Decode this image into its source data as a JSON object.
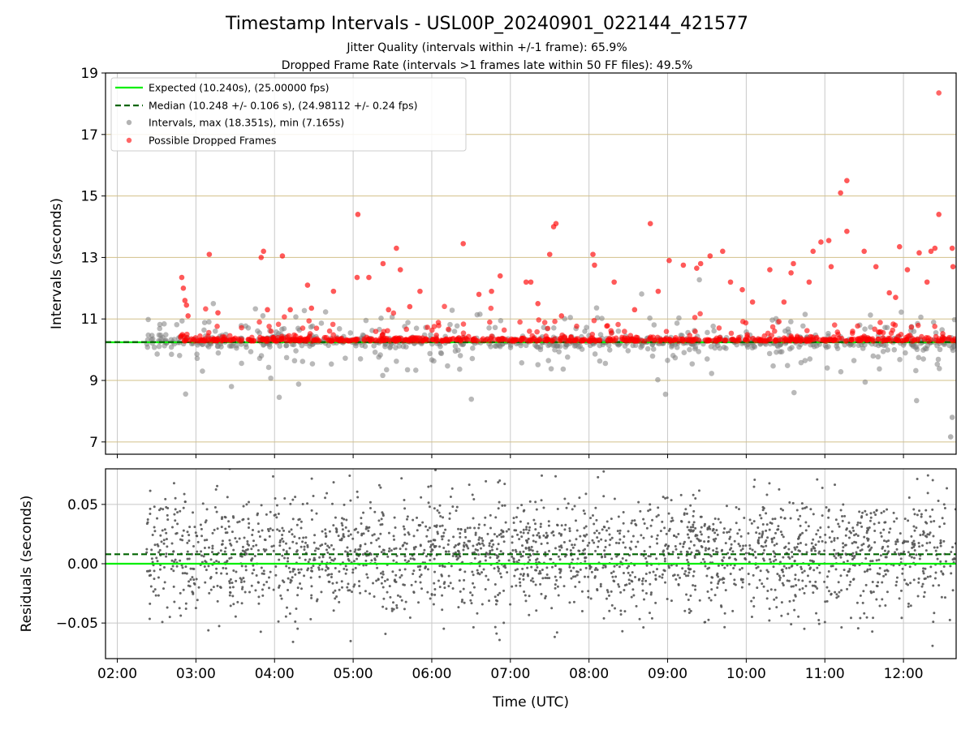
{
  "figure": {
    "title": "Timestamp Intervals - USL00P_20240901_022144_421577",
    "subtitle_1": "Jitter Quality (intervals within +/-1 frame): 65.9%",
    "subtitle_2": "Dropped Frame Rate (intervals >1 frames late within 50 FF files): 49.5%"
  },
  "colors": {
    "expected_line": "#00ee00",
    "median_line": "#006400",
    "intervals": "#808080",
    "dropped": "#ff0000",
    "grid_vertical": "#c8c8c8",
    "grid_horizontal": "#d2c08a",
    "residual_points": "#555555"
  },
  "chart_data": [
    {
      "type": "scatter",
      "panel": "intervals",
      "ylabel": "Intervals (seconds)",
      "xlabel": "",
      "xlim_hours": [
        1.85,
        12.67
      ],
      "ylim": [
        6.6,
        19
      ],
      "y_ticks": [
        7,
        9,
        11,
        13,
        15,
        17,
        19
      ],
      "y_tick_labels": [
        "7",
        "9",
        "11",
        "13",
        "15",
        "17",
        "19"
      ],
      "x_ticks_hours": [
        2,
        3,
        4,
        5,
        6,
        7,
        8,
        9,
        10,
        11,
        12
      ],
      "x_tick_labels": [
        "",
        "",
        "",
        "",
        "",
        "",
        "",
        "",
        "",
        "",
        ""
      ],
      "grid": true,
      "legend_position": "top-left",
      "legend": {
        "expected": "Expected (10.240s), (25.00000 fps)",
        "median": "Median (10.248 +/- 0.106 s), (24.98112 +/- 0.24 fps)",
        "intervals": "Intervals, max (18.351s), min (7.165s)",
        "dropped": "Possible Dropped Frames"
      },
      "expected_value": 10.24,
      "median_value": 10.248,
      "start_hour": 2.37,
      "end_hour": 12.67,
      "max_interval": 18.351,
      "min_interval": 7.165,
      "dropped_highlights": [
        [
          2.82,
          12.35
        ],
        [
          2.84,
          12.0
        ],
        [
          2.86,
          11.6
        ],
        [
          2.88,
          11.45
        ],
        [
          2.9,
          11.1
        ],
        [
          3.17,
          13.1
        ],
        [
          3.28,
          11.2
        ],
        [
          3.83,
          13.0
        ],
        [
          3.86,
          13.2
        ],
        [
          3.91,
          11.3
        ],
        [
          4.1,
          13.05
        ],
        [
          4.2,
          11.3
        ],
        [
          4.42,
          12.1
        ],
        [
          4.47,
          11.35
        ],
        [
          4.75,
          11.9
        ],
        [
          5.05,
          12.35
        ],
        [
          5.06,
          14.4
        ],
        [
          5.2,
          12.35
        ],
        [
          5.38,
          12.8
        ],
        [
          5.45,
          11.3
        ],
        [
          5.55,
          13.3
        ],
        [
          5.6,
          12.6
        ],
        [
          5.72,
          11.4
        ],
        [
          5.85,
          11.9
        ],
        [
          6.4,
          13.45
        ],
        [
          6.6,
          11.8
        ],
        [
          6.76,
          11.9
        ],
        [
          6.87,
          12.4
        ],
        [
          7.2,
          12.2
        ],
        [
          7.26,
          12.2
        ],
        [
          7.35,
          11.5
        ],
        [
          7.5,
          13.1
        ],
        [
          7.55,
          14.0
        ],
        [
          7.58,
          14.1
        ],
        [
          7.65,
          11.1
        ],
        [
          8.05,
          13.1
        ],
        [
          8.07,
          12.75
        ],
        [
          8.32,
          12.2
        ],
        [
          8.58,
          11.3
        ],
        [
          8.78,
          14.1
        ],
        [
          8.88,
          11.9
        ],
        [
          9.02,
          12.9
        ],
        [
          9.2,
          12.75
        ],
        [
          9.37,
          12.65
        ],
        [
          9.42,
          12.8
        ],
        [
          9.54,
          13.05
        ],
        [
          9.7,
          13.2
        ],
        [
          9.8,
          12.2
        ],
        [
          9.95,
          11.95
        ],
        [
          10.08,
          11.55
        ],
        [
          10.3,
          12.6
        ],
        [
          10.48,
          11.55
        ],
        [
          10.57,
          12.5
        ],
        [
          10.6,
          12.8
        ],
        [
          10.8,
          12.2
        ],
        [
          10.85,
          13.2
        ],
        [
          10.95,
          13.5
        ],
        [
          11.05,
          13.55
        ],
        [
          11.08,
          12.7
        ],
        [
          11.2,
          15.1
        ],
        [
          11.28,
          15.5
        ],
        [
          11.28,
          13.85
        ],
        [
          11.5,
          13.2
        ],
        [
          11.65,
          12.7
        ],
        [
          11.82,
          11.85
        ],
        [
          11.9,
          11.7
        ],
        [
          11.95,
          13.35
        ],
        [
          12.05,
          12.6
        ],
        [
          12.2,
          13.15
        ],
        [
          12.3,
          12.2
        ],
        [
          12.35,
          13.2
        ],
        [
          12.4,
          13.3
        ],
        [
          12.45,
          14.4
        ],
        [
          12.62,
          13.3
        ],
        [
          12.63,
          12.7
        ]
      ]
    },
    {
      "type": "scatter",
      "panel": "residuals",
      "ylabel": "Residuals (seconds)",
      "xlabel": "Time (UTC)",
      "xlim_hours": [
        1.85,
        12.67
      ],
      "ylim": [
        -0.08,
        0.08
      ],
      "y_ticks": [
        -0.05,
        0.0,
        0.05
      ],
      "y_tick_labels": [
        "−0.05",
        "0.00",
        "0.05"
      ],
      "x_ticks_hours": [
        2,
        3,
        4,
        5,
        6,
        7,
        8,
        9,
        10,
        11,
        12
      ],
      "x_tick_labels": [
        "02:00",
        "03:00",
        "04:00",
        "05:00",
        "06:00",
        "07:00",
        "08:00",
        "09:00",
        "10:00",
        "11:00",
        "12:00"
      ],
      "grid": true,
      "expected_residual": 0.0,
      "median_residual": 0.008,
      "residual_spread": 0.03
    }
  ]
}
